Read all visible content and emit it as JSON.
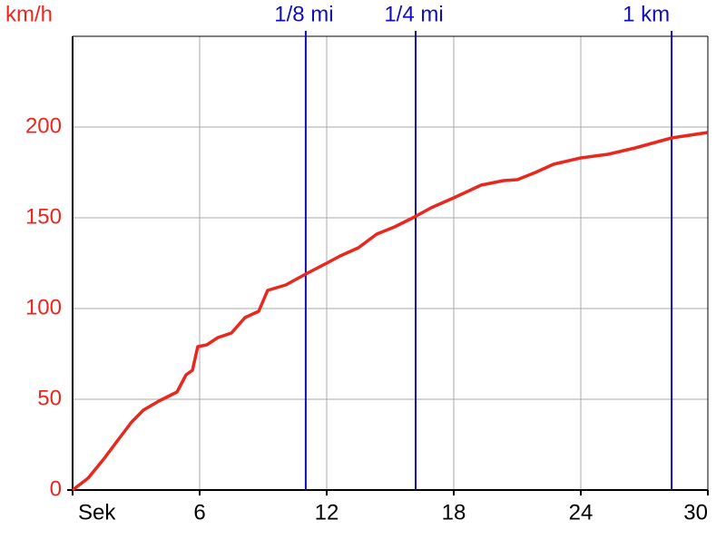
{
  "chart_data": {
    "type": "line",
    "y_label": "km/h",
    "x": [
      0,
      0.73,
      1.5,
      2.14,
      2.79,
      3.34,
      4.07,
      4.5,
      4.93,
      5.36,
      5.66,
      5.91,
      6.34,
      6.86,
      7.5,
      8.14,
      8.79,
      9.21,
      10.07,
      11.01,
      12,
      12.64,
      13.5,
      14.36,
      15.21,
      16.07,
      16.93,
      18,
      19.29,
      20.36,
      21,
      21.86,
      22.71,
      24,
      25.29,
      26.57,
      28.29,
      30
    ],
    "values": [
      0,
      6.5,
      17.5,
      27.5,
      37.5,
      44,
      49,
      51.5,
      54,
      63.5,
      66,
      79,
      80,
      84,
      86.5,
      95,
      98.5,
      110,
      113,
      119,
      125,
      129,
      133.5,
      141,
      145,
      150,
      155.5,
      161,
      168,
      170.5,
      171,
      175,
      179.5,
      183,
      185,
      188.5,
      194,
      197
    ],
    "color": "#e8281e",
    "xlim": [
      0,
      30
    ],
    "xticks": [
      {
        "value": 0,
        "label": "Sek"
      },
      6,
      12,
      18,
      24,
      30
    ],
    "ylim": [
      0,
      250
    ],
    "yticks": [
      0,
      50,
      100,
      150,
      200
    ],
    "grid": true,
    "vlines": [
      {
        "x": 11.01,
        "label": "1/8 mi"
      },
      {
        "x": 16.2,
        "label": "1/4 mi"
      },
      {
        "x": 28.29,
        "label": "1 km"
      }
    ],
    "vline_color": "#1010b0"
  }
}
